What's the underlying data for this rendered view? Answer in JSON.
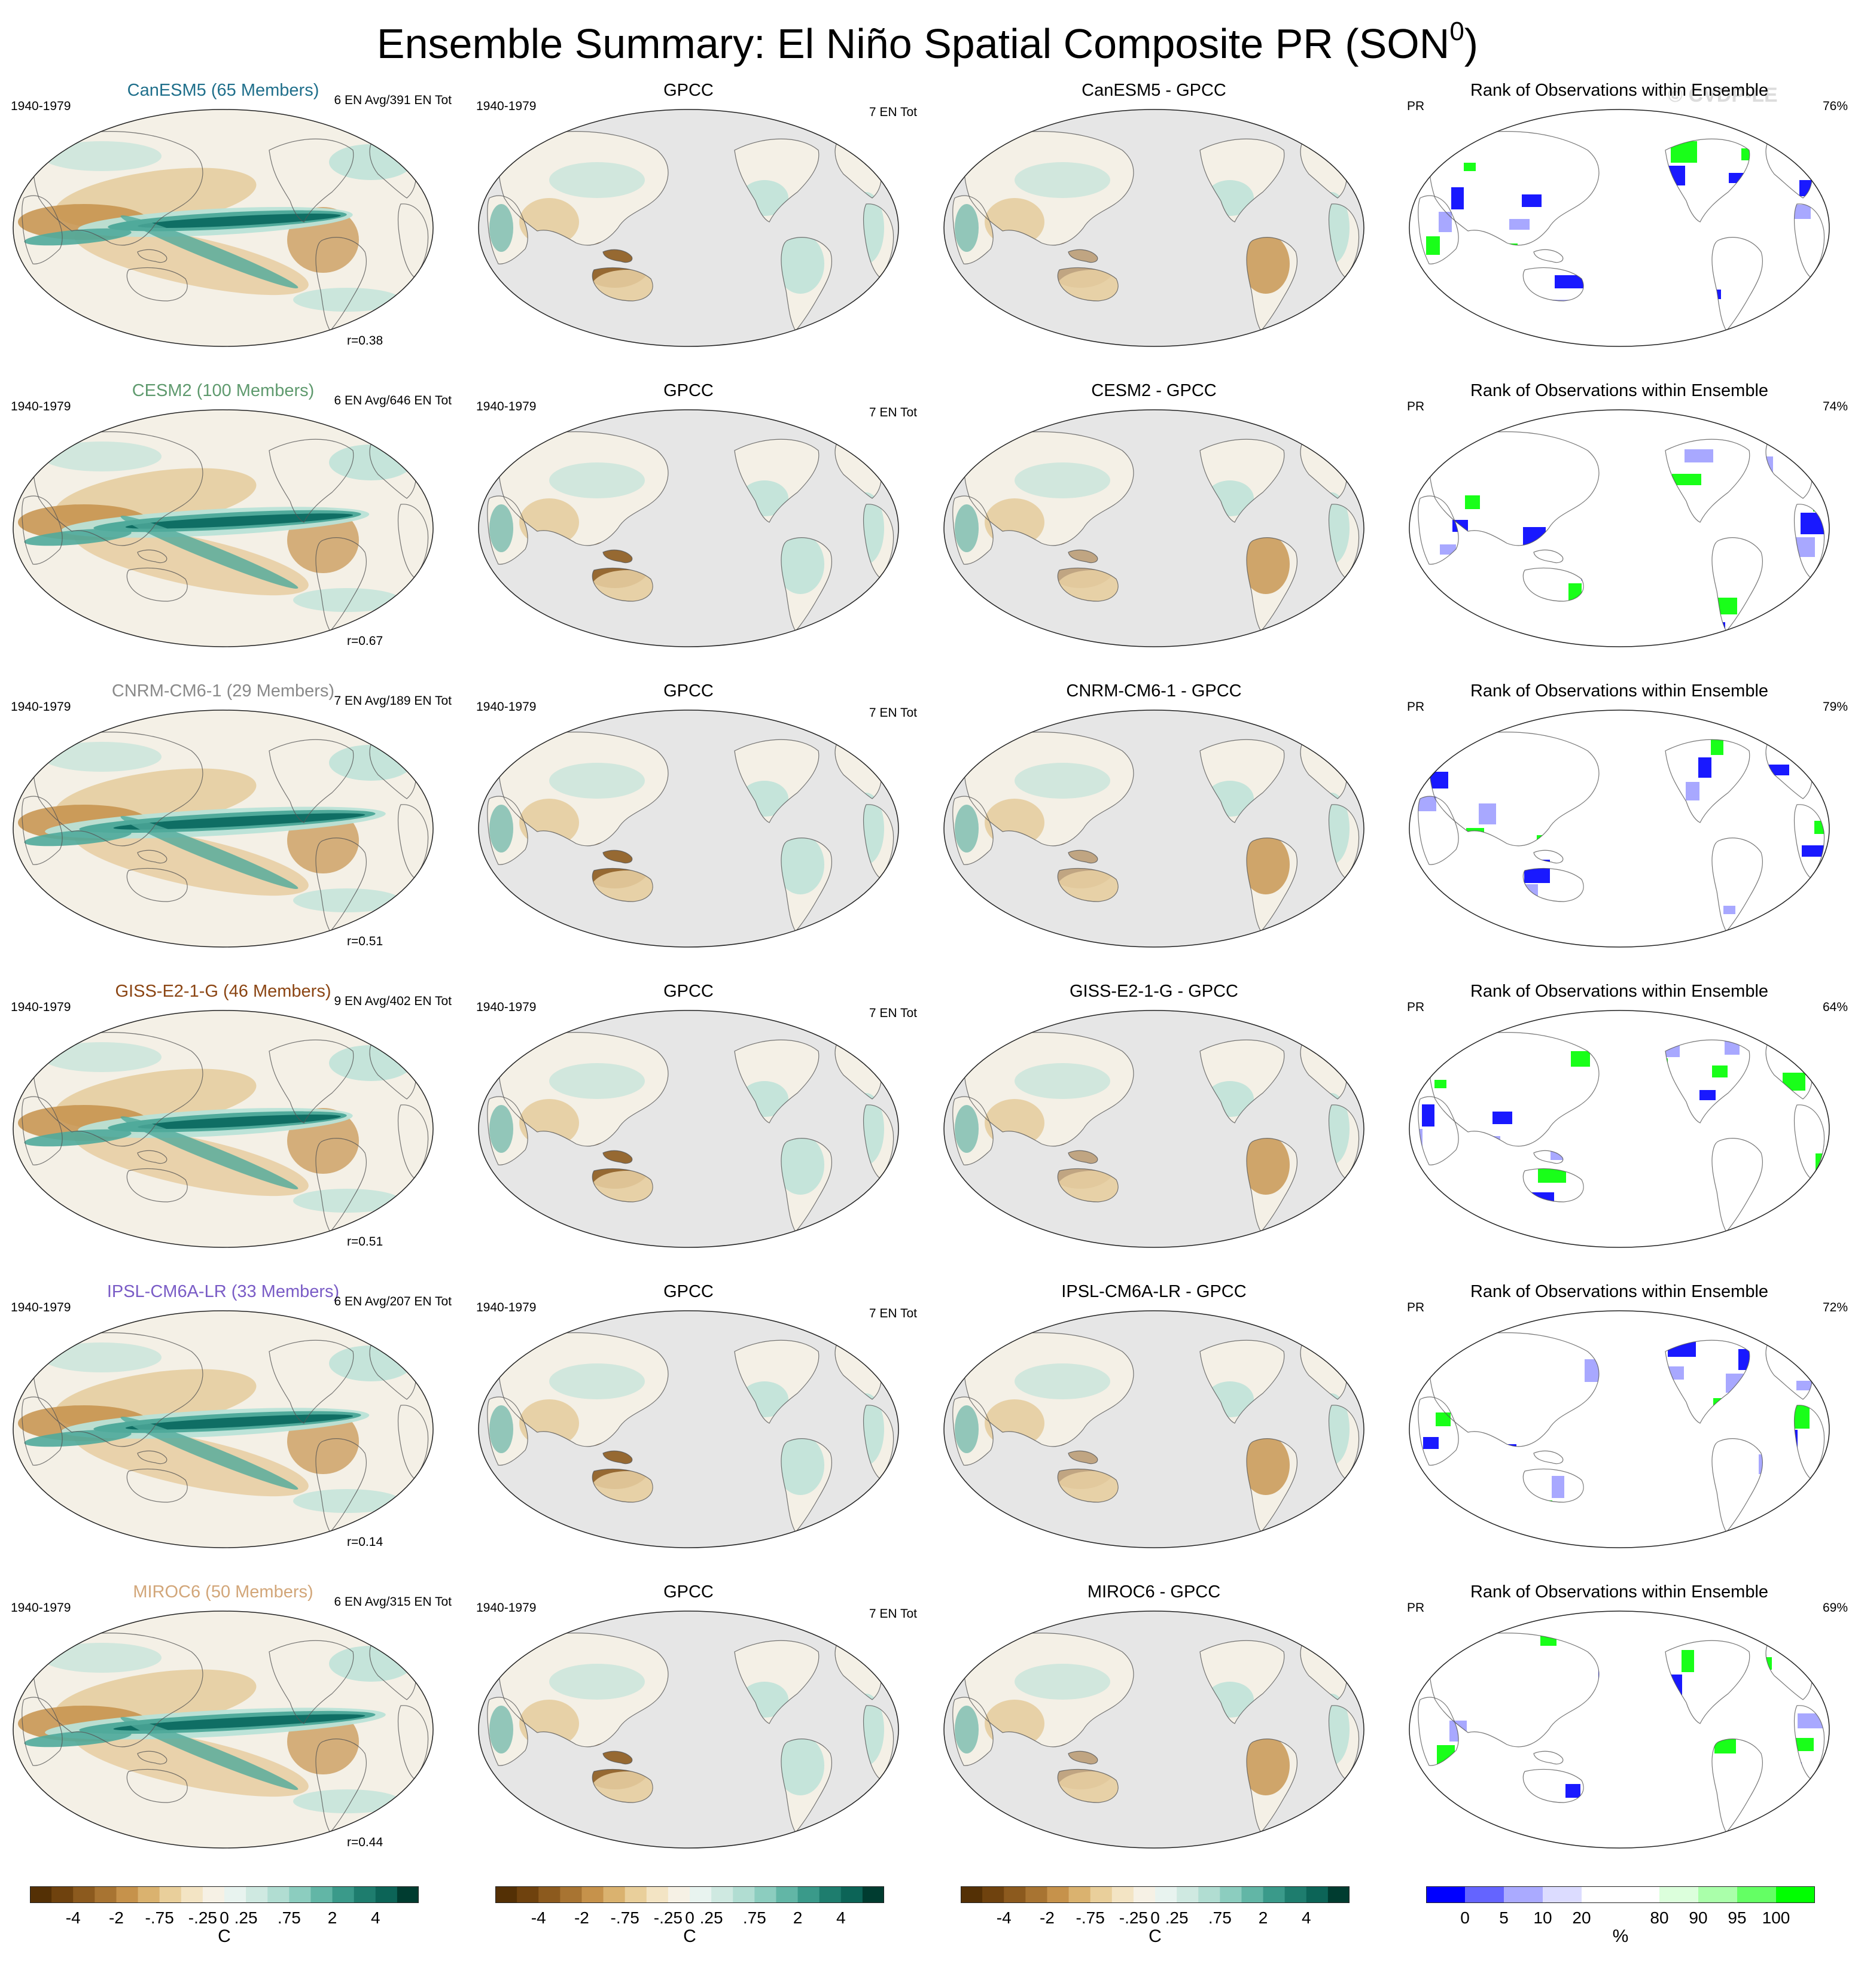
{
  "title": "Ensemble Summary: El Niño Spatial Composite PR (SON",
  "title_superscript": "0",
  "title_close": ")",
  "watermark": "© CVDP-LE",
  "period": "1940-1979",
  "obs_name": "GPCC",
  "obs_events": "7 EN Tot",
  "rank_title": "Rank of Observations within Ensemble",
  "rank_var": "PR",
  "map_colors": {
    "ocean_gray": "#e6e6e6",
    "neutral": "#f4f0e6",
    "brown_strong": "#8c5a1e",
    "brown_mid": "#c6924b",
    "brown_light": "#e6cda0",
    "teal_strong": "#0f6e64",
    "teal_mid": "#50aa9b",
    "teal_light": "#b9e1d7",
    "rank_blue": "#0000ff",
    "rank_green": "#00ff00"
  },
  "rows": [
    {
      "model": "CanESM5",
      "members_label": "CanESM5 (65 Members)",
      "label_color": "#1f6f8b",
      "events": "6 EN Avg/391 EN Tot",
      "corr": "r=0.38",
      "diff_title": "CanESM5 - GPCC",
      "rank_pct": "76%"
    },
    {
      "model": "CESM2",
      "members_label": "CESM2 (100 Members)",
      "label_color": "#5f9a6e",
      "events": "6 EN Avg/646 EN Tot",
      "corr": "r=0.67",
      "diff_title": "CESM2 - GPCC",
      "rank_pct": "74%"
    },
    {
      "model": "CNRM-CM6-1",
      "members_label": "CNRM-CM6-1 (29 Members)",
      "label_color": "#8a8a8a",
      "events": "7 EN Avg/189 EN Tot",
      "corr": "r=0.51",
      "diff_title": "CNRM-CM6-1 - GPCC",
      "rank_pct": "79%"
    },
    {
      "model": "GISS-E2-1-G",
      "members_label": "GISS-E2-1-G (46 Members)",
      "label_color": "#8b4513",
      "events": "9 EN Avg/402 EN Tot",
      "corr": "r=0.51",
      "diff_title": "GISS-E2-1-G - GPCC",
      "rank_pct": "64%"
    },
    {
      "model": "IPSL-CM6A-LR",
      "members_label": "IPSL-CM6A-LR (33 Members)",
      "label_color": "#7a5cc6",
      "events": "6 EN Avg/207 EN Tot",
      "corr": "r=0.14",
      "diff_title": "IPSL-CM6A-LR - GPCC",
      "rank_pct": "72%"
    },
    {
      "model": "MIROC6",
      "members_label": "MIROC6 (50 Members)",
      "label_color": "#d2a679",
      "events": "6 EN Avg/315 EN Tot",
      "corr": "r=0.44",
      "diff_title": "MIROC6 - GPCC",
      "rank_pct": "69%"
    }
  ],
  "colorbars": [
    {
      "name": "model",
      "unit": "C",
      "ticks": [
        "-4",
        "-2",
        "-.75",
        "-.25",
        "0",
        ".25",
        ".75",
        "2",
        "4"
      ],
      "colors": [
        "#543005",
        "#6f420e",
        "#8c5a1e",
        "#a87432",
        "#c6924b",
        "#dab26f",
        "#e9cf9b",
        "#f3e4c4",
        "#f6f1e5",
        "#e8f3ef",
        "#cfe9e1",
        "#b1ddd2",
        "#8ccdbf",
        "#62b6a6",
        "#3a9a8a",
        "#1e7d6e",
        "#0c6457",
        "#003c30"
      ]
    },
    {
      "name": "obs",
      "unit": "C",
      "ticks": [
        "-4",
        "-2",
        "-.75",
        "-.25",
        "0",
        ".25",
        ".75",
        "2",
        "4"
      ],
      "colors": [
        "#543005",
        "#6f420e",
        "#8c5a1e",
        "#a87432",
        "#c6924b",
        "#dab26f",
        "#e9cf9b",
        "#f3e4c4",
        "#f6f1e5",
        "#e8f3ef",
        "#cfe9e1",
        "#b1ddd2",
        "#8ccdbf",
        "#62b6a6",
        "#3a9a8a",
        "#1e7d6e",
        "#0c6457",
        "#003c30"
      ]
    },
    {
      "name": "diff",
      "unit": "C",
      "ticks": [
        "-4",
        "-2",
        "-.75",
        "-.25",
        "0",
        ".25",
        ".75",
        "2",
        "4"
      ],
      "colors": [
        "#543005",
        "#6f420e",
        "#8c5a1e",
        "#a87432",
        "#c6924b",
        "#dab26f",
        "#e9cf9b",
        "#f3e4c4",
        "#f6f1e5",
        "#e8f3ef",
        "#cfe9e1",
        "#b1ddd2",
        "#8ccdbf",
        "#62b6a6",
        "#3a9a8a",
        "#1e7d6e",
        "#0c6457",
        "#003c30"
      ]
    },
    {
      "name": "rank",
      "unit": "%",
      "ticks": [
        "0",
        "5",
        "10",
        "20",
        "80",
        "90",
        "95",
        "100"
      ],
      "colors": [
        "#0000ff",
        "#6464ff",
        "#aaaaff",
        "#dcdcff",
        "#ffffff",
        "#ffffff",
        "#dcffdc",
        "#aaffaa",
        "#64ff64",
        "#00ff00"
      ]
    }
  ]
}
